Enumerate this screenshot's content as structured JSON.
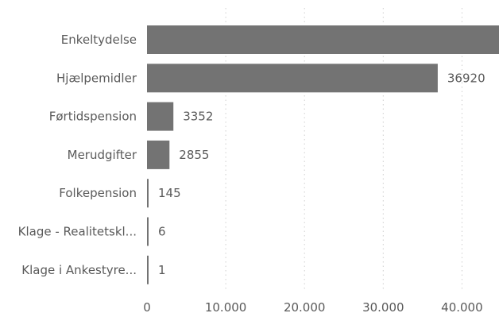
{
  "chart_data": {
    "type": "bar",
    "orientation": "horizontal",
    "categories": [
      "Enkeltydelse",
      "Hjælpemidler",
      "Førtidspension",
      "Merudgifter",
      "Folkepension",
      "Klage - Realitetskl...",
      "Klage i Ankestyre..."
    ],
    "values": [
      44700,
      36920,
      3352,
      2855,
      145,
      6,
      1
    ],
    "value_labels": [
      "",
      "36920",
      "3352",
      "2855",
      "145",
      "6",
      "1"
    ],
    "xticks": [
      0,
      10000,
      20000,
      30000,
      40000
    ],
    "xtick_labels": [
      "0",
      "10.000",
      "20.000",
      "30.000",
      "40.000"
    ],
    "xlim": [
      0,
      44700
    ],
    "grid": "vertical",
    "bar_color": "#737373",
    "title": "",
    "xlabel": "",
    "ylabel": ""
  }
}
